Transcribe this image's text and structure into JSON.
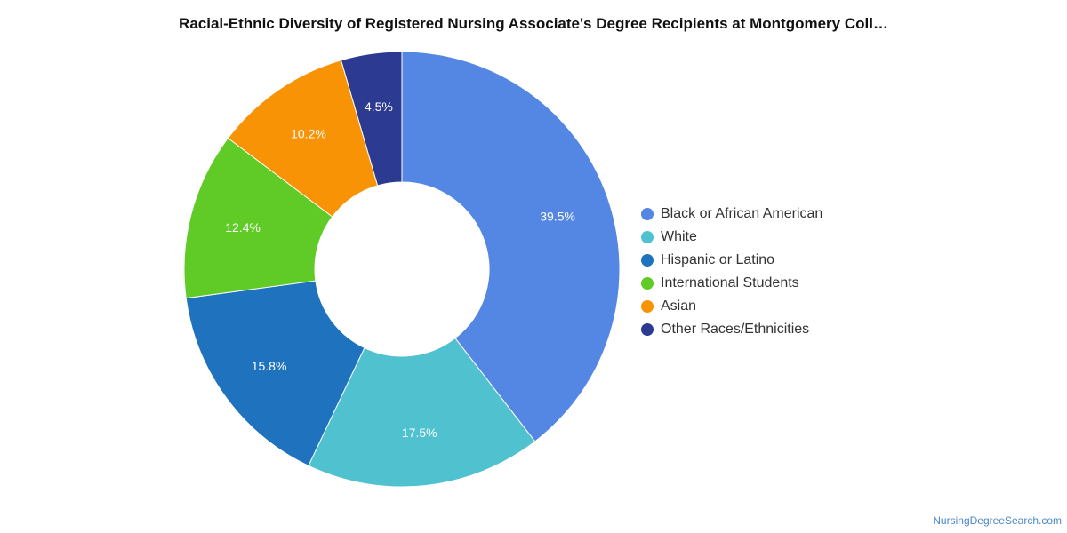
{
  "chart_data": {
    "type": "pie",
    "title": "Racial-Ethnic Diversity of Registered Nursing Associate's Degree Recipients at Montgomery Coll…",
    "categories": [
      "Black or African American",
      "White",
      "Hispanic or Latino",
      "International Students",
      "Asian",
      "Other Races/Ethnicities"
    ],
    "values": [
      39.5,
      17.5,
      15.8,
      12.4,
      10.2,
      4.5
    ],
    "value_labels": [
      "39.5%",
      "17.5%",
      "15.8%",
      "12.4%",
      "10.2%",
      "4.5%"
    ],
    "colors": [
      "#5486e3",
      "#4fc1cf",
      "#1f72bd",
      "#60cb26",
      "#f99306",
      "#2d3a92"
    ],
    "donut": true,
    "legend_position": "right"
  },
  "footer": {
    "credit": "NursingDegreeSearch.com"
  }
}
